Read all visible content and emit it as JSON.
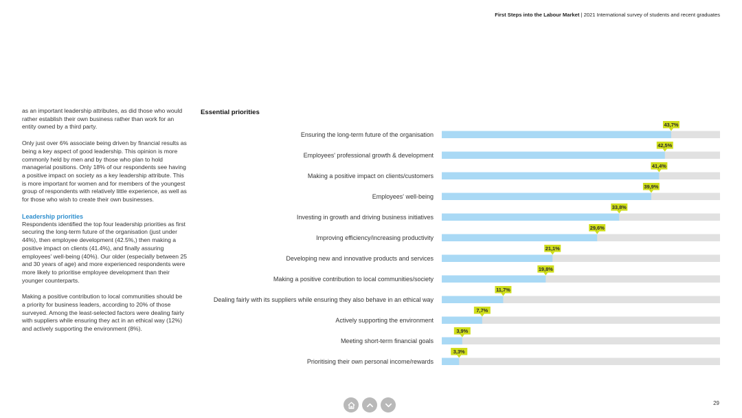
{
  "header": {
    "title_bold": "First Steps into the Labour Market",
    "title_rest": " | 2021 International survey of students and recent graduates"
  },
  "body": {
    "para1": "as an important leadership attributes, as did those who would rather establish their own business rather than work for an entity owned by a third party.",
    "para2": "Only just over 6% associate being driven by financial results as being a key aspect of good leadership. This opinion is more commonly held by men and by those who plan to hold managerial positions. Only 18% of our respondents see having a positive impact on society as a key leadership attribute. This is more important for women and for members of the youngest group of respondents with relatively little experience, as well as for those who wish to create their own businesses.",
    "section_heading": "Leadership priorities",
    "para3": "Respondents identified the top four leadership priorities as first securing the long-term future of the organisation (just under 44%), then employee development (42.5%,) then making a positive impact on clients (41.4%), and finally assuring employees' well-being (40%). Our older (especially between 25 and 30 years of age) and more experienced respondents were more likely to prioritise employee development than their younger counterparts.",
    "para4": "Making a positive contribution to local communities should be a priority for business leaders, according to 20% of those surveyed. Among the least-selected factors were dealing fairly with suppliers while ensuring they act in an ethical way (12%) and actively supporting the environment (8%)."
  },
  "chart_data": {
    "type": "bar",
    "orientation": "horizontal",
    "title": "Essential priorities",
    "categories": [
      "Ensuring the long-term future of the organisation",
      "Employees' professional growth & development",
      "Making a positive impact on clients/customers",
      "Employees' well-being",
      "Investing in growth and driving business initiatives",
      "Improving efficiency/increasing productivity",
      "Developing new and innovative products and services",
      "Making a positive contribution to local communities/society",
      "Dealing fairly with its suppliers while ensuring they also behave in an ethical way",
      "Actively supporting the environment",
      "Meeting short-term financial goals",
      "Prioritising their own personal income/rewards"
    ],
    "values": [
      43.7,
      42.5,
      41.4,
      39.9,
      33.8,
      29.6,
      21.1,
      19.8,
      11.7,
      7.7,
      3.9,
      3.3
    ],
    "value_labels": [
      "43,7%",
      "42,5%",
      "41,4%",
      "39,9%",
      "33,8%",
      "29,6%",
      "21,1%",
      "19,8%",
      "11,7%",
      "7,7%",
      "3,9%",
      "3,3%"
    ],
    "xlim": [
      0,
      53
    ],
    "colors": {
      "bar": "#a9d9f5",
      "track": "#e1e1e1",
      "label_bg": "#cfdd1b",
      "label_text": "#2a2a2a"
    }
  },
  "nav": {
    "icons": [
      "home-icon",
      "chevron-up-icon",
      "chevron-down-icon"
    ],
    "color": "#b9b9b9"
  },
  "page_number": "29"
}
